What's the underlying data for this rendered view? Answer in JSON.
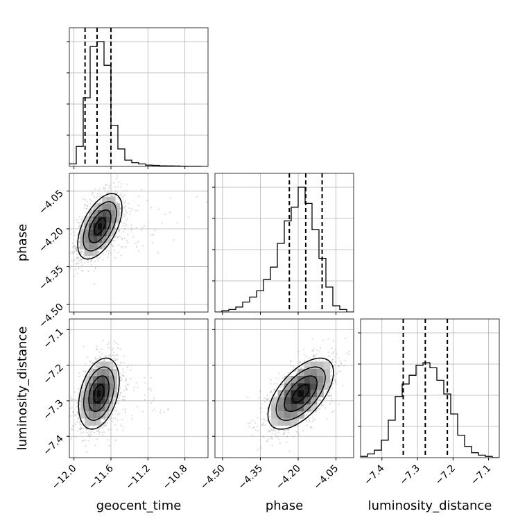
{
  "chart_data": {
    "type": "corner",
    "parameters": [
      "geocent_time",
      "phase",
      "luminosity_distance"
    ],
    "axis_labels": {
      "x": [
        "geocent_time",
        "phase",
        "luminosity_distance"
      ],
      "y": [
        "phase",
        "luminosity_distance"
      ]
    },
    "grid": true,
    "ranges": {
      "geocent_time": [
        -12.05,
        -10.55
      ],
      "phase": [
        -4.53,
        -3.98
      ],
      "luminosity_distance": [
        -7.46,
        -7.07
      ]
    },
    "ticks": {
      "geocent_time": [
        -12.0,
        -11.6,
        -11.2,
        -10.8
      ],
      "phase": [
        -4.5,
        -4.35,
        -4.2,
        -4.05
      ],
      "luminosity_distance": [
        -7.4,
        -7.3,
        -7.2,
        -7.1
      ]
    },
    "tick_labels": {
      "geocent_time": [
        "−12.0",
        "−11.6",
        "−11.2",
        "−10.8"
      ],
      "phase": [
        "−4.50",
        "−4.35",
        "−4.20",
        "−4.05"
      ],
      "luminosity_distance": [
        "−7.4",
        "−7.3",
        "−7.2",
        "−7.1"
      ]
    },
    "quantiles": {
      "geocent_time": [
        -11.88,
        -11.75,
        -11.6
      ],
      "phase": [
        -4.235,
        -4.17,
        -4.105
      ],
      "luminosity_distance": [
        -7.34,
        -7.278,
        -7.216
      ]
    },
    "histograms": {
      "geocent_time": {
        "edges": [
          -12.05,
          -11.975,
          -11.9,
          -11.825,
          -11.75,
          -11.675,
          -11.6,
          -11.525,
          -11.45,
          -11.375,
          -11.3,
          -11.225,
          -11.15,
          -11.075,
          -11.0,
          -10.925,
          -10.85,
          -10.775,
          -10.7,
          -10.625,
          -10.55
        ],
        "counts": [
          0.02,
          0.16,
          0.55,
          0.96,
          1.0,
          0.81,
          0.33,
          0.14,
          0.05,
          0.03,
          0.02,
          0.01,
          0.008,
          0.005,
          0.004,
          0.003,
          0.002,
          0.001,
          0.001,
          0.0
        ]
      },
      "phase": {
        "edges": [
          -4.53,
          -4.5025,
          -4.475,
          -4.4475,
          -4.42,
          -4.3925,
          -4.365,
          -4.3375,
          -4.31,
          -4.2825,
          -4.255,
          -4.2275,
          -4.2,
          -4.1725,
          -4.145,
          -4.1175,
          -4.09,
          -4.0625,
          -4.035,
          -4.0075,
          -3.98
        ],
        "counts": [
          0.0,
          0.01,
          0.02,
          0.04,
          0.08,
          0.12,
          0.17,
          0.26,
          0.36,
          0.55,
          0.73,
          0.84,
          1.0,
          0.87,
          0.66,
          0.43,
          0.2,
          0.05,
          0.02,
          0.0
        ]
      },
      "luminosity_distance": {
        "edges": [
          -7.46,
          -7.4405,
          -7.421,
          -7.4015,
          -7.382,
          -7.3625,
          -7.343,
          -7.3235,
          -7.304,
          -7.2845,
          -7.265,
          -7.2455,
          -7.226,
          -7.2065,
          -7.187,
          -7.1675,
          -7.148,
          -7.1285,
          -7.109,
          -7.0895,
          -7.07
        ],
        "counts": [
          0.01,
          0.03,
          0.06,
          0.14,
          0.3,
          0.49,
          0.59,
          0.66,
          0.74,
          0.76,
          0.72,
          0.62,
          0.51,
          0.35,
          0.18,
          0.09,
          0.04,
          0.02,
          0.01,
          0.0
        ]
      }
    },
    "scatter": {
      "phase_vs_geocent_time": {
        "center": [
          -11.72,
          -4.19
        ],
        "sigma": [
          0.12,
          0.065
        ],
        "rho": 0.55
      },
      "luminosity_distance_vs_geocent_time": {
        "center": [
          -11.73,
          -7.28
        ],
        "sigma": [
          0.11,
          0.05
        ],
        "rho": 0.35
      },
      "luminosity_distance_vs_phase": {
        "center": [
          -4.19,
          -7.28
        ],
        "sigma": [
          0.065,
          0.05
        ],
        "rho": 0.6
      }
    },
    "contour_levels_sigma": [
      0.5,
      1.0,
      1.5,
      2.0
    ]
  }
}
